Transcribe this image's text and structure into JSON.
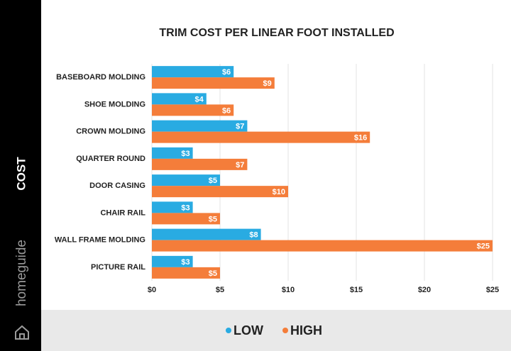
{
  "sidebar": {
    "label": "COST",
    "brand": "homeguide"
  },
  "chart_data": {
    "type": "bar",
    "orientation": "horizontal",
    "title": "TRIM COST PER LINEAR FOOT INSTALLED",
    "categories": [
      "BASEBOARD MOLDING",
      "SHOE MOLDING",
      "CROWN MOLDING",
      "QUARTER ROUND",
      "DOOR CASING",
      "CHAIR RAIL",
      "WALL FRAME MOLDING",
      "PICTURE RAIL"
    ],
    "series": [
      {
        "name": "LOW",
        "color": "#29abe2",
        "values": [
          6,
          4,
          7,
          3,
          5,
          3,
          8,
          3
        ],
        "value_labels": [
          "$6",
          "$4",
          "$7",
          "$3",
          "$5",
          "$3",
          "$8",
          "$3"
        ]
      },
      {
        "name": "HIGH",
        "color": "#f47d3a",
        "values": [
          9,
          6,
          16,
          7,
          10,
          5,
          25,
          5
        ],
        "value_labels": [
          "$9",
          "$6",
          "$16",
          "$7",
          "$10",
          "$5",
          "$25",
          "$5"
        ]
      }
    ],
    "xlim": [
      0,
      25
    ],
    "xticks": [
      {
        "value": 0,
        "label": "$0"
      },
      {
        "value": 5,
        "label": "$5"
      },
      {
        "value": 10,
        "label": "$10"
      },
      {
        "value": 15,
        "label": "$15"
      },
      {
        "value": 20,
        "label": "$20"
      },
      {
        "value": 25,
        "label": "$25"
      }
    ],
    "grid": true,
    "legend": "bottom"
  }
}
